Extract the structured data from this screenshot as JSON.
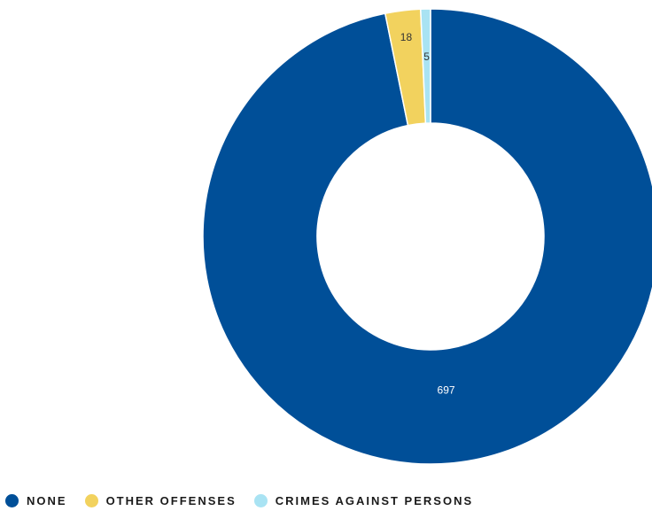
{
  "chart_data": {
    "type": "pie",
    "donut": true,
    "title": "",
    "slices": [
      {
        "label": "NONE",
        "value": 697,
        "color": "#004f98"
      },
      {
        "label": "OTHER OFFENSES",
        "value": 18,
        "color": "#f2d25e"
      },
      {
        "label": "CRIMES AGAINST PERSONS",
        "value": 5,
        "color": "#a9e3f3"
      }
    ],
    "start": "top",
    "direction": "clockwise",
    "legend_position": "bottom-left"
  }
}
